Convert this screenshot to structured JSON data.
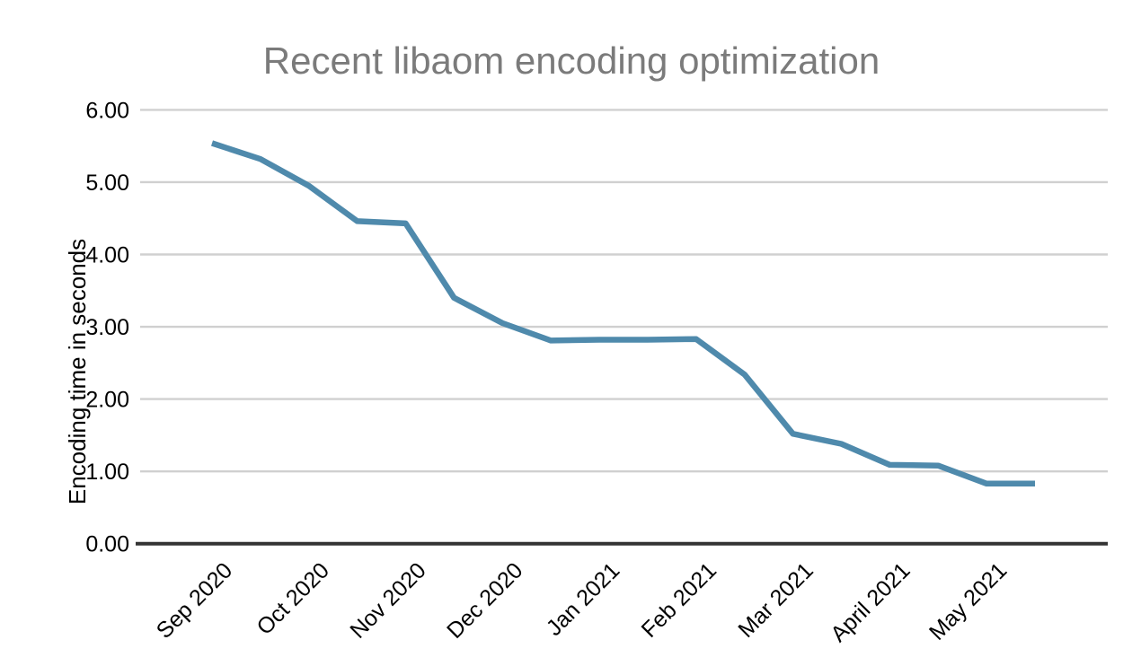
{
  "chart_data": {
    "type": "line",
    "title": "Recent libaom encoding optimization",
    "xlabel": "",
    "ylabel": "Encoding time in seconds",
    "ylim": [
      0,
      6
    ],
    "y_tick_labels": [
      "0.00",
      "1.00",
      "2.00",
      "3.00",
      "4.00",
      "5.00",
      "6.00"
    ],
    "x_tick_labels": [
      "Sep 2020",
      "Oct 2020",
      "Nov 2020",
      "Dec 2020",
      "Jan 2021",
      "Feb 2021",
      "Mar 2021",
      "April 2021",
      "May 2021"
    ],
    "x_tick_point_indices": [
      0,
      2,
      4,
      6,
      8,
      10,
      12,
      14,
      16
    ],
    "points_per_month": 2,
    "values": [
      5.54,
      5.32,
      4.95,
      4.46,
      4.43,
      3.4,
      3.05,
      2.81,
      2.82,
      2.82,
      2.83,
      2.34,
      1.52,
      1.38,
      1.09,
      1.08,
      0.83,
      0.83
    ],
    "grid": "horizontal",
    "legend_position": "none",
    "colors": {
      "line": "#4f8aac",
      "title_text": "#7b7b7b",
      "axis_text": "#000000",
      "gridline": "#d0d0d0",
      "axis_line": "#333333",
      "background": "#ffffff"
    }
  }
}
